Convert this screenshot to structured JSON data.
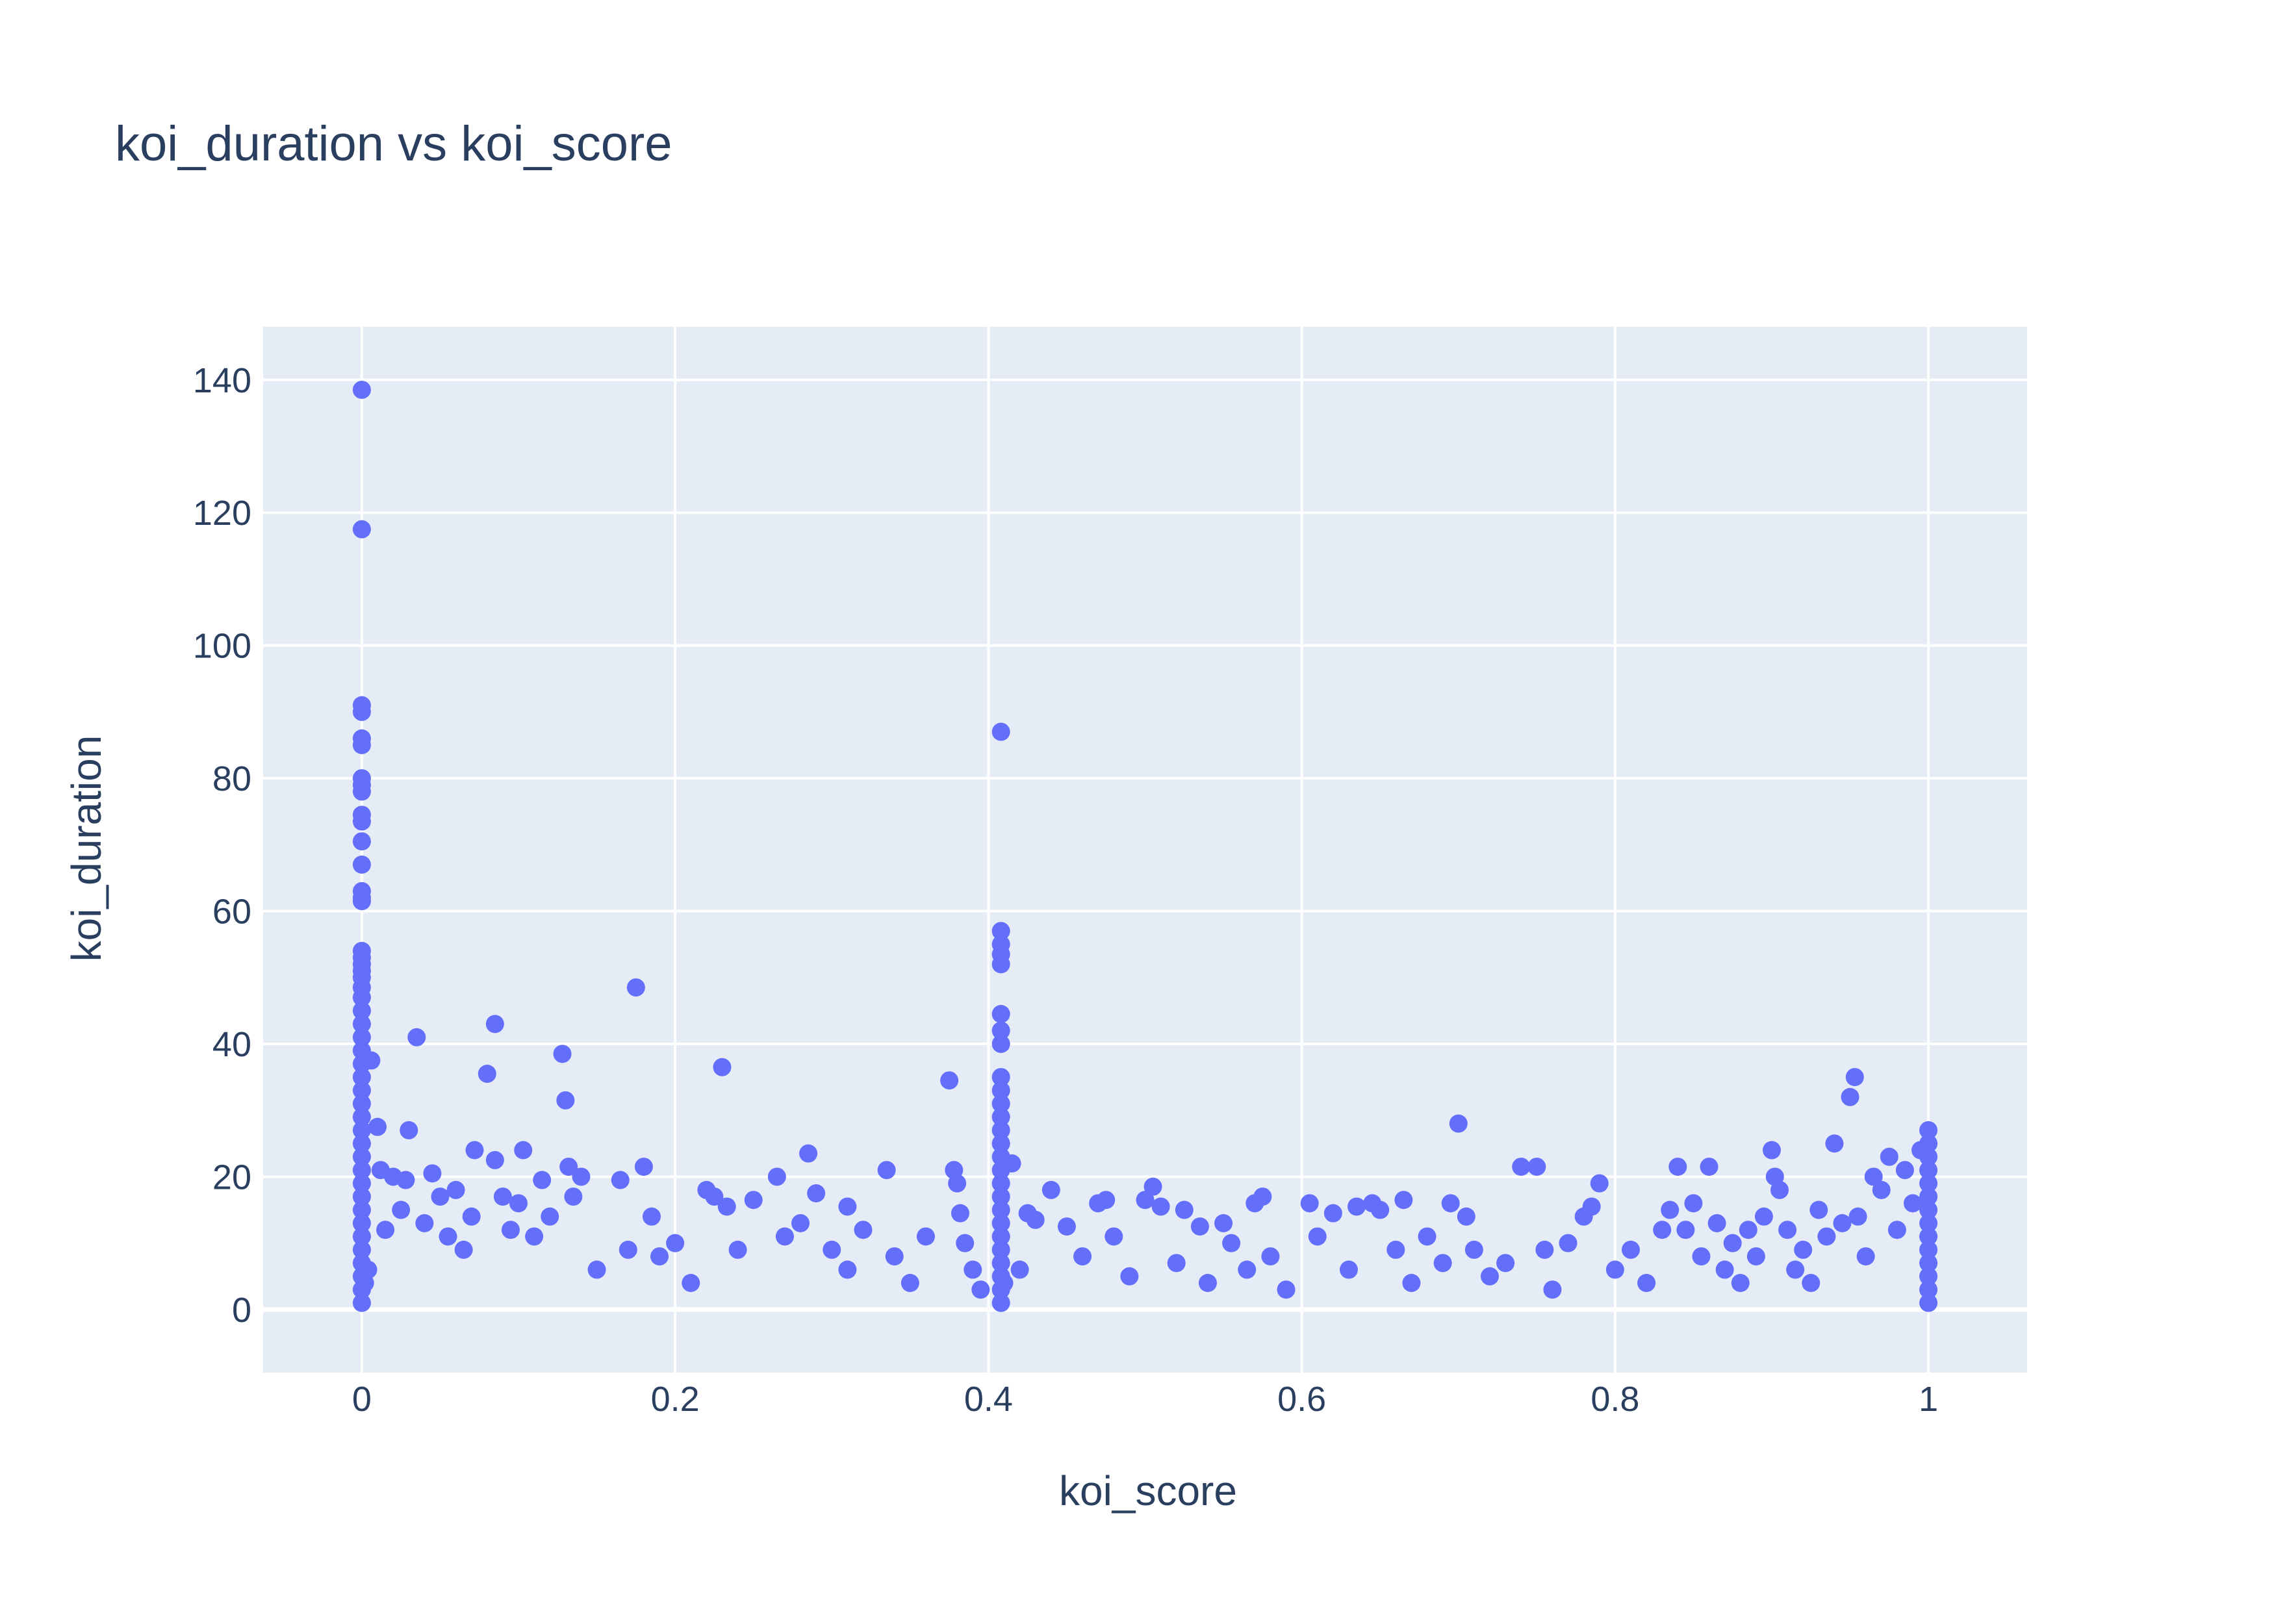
{
  "chart_data": {
    "type": "scatter",
    "title": "koi_duration vs koi_score",
    "xlabel": "koi_score",
    "ylabel": "koi_duration",
    "xlim": [
      -0.063,
      1.063
    ],
    "ylim": [
      -9.5,
      148
    ],
    "x_ticks": [
      0,
      0.2,
      0.4,
      0.6,
      0.8,
      1
    ],
    "x_tick_labels": [
      "0",
      "0.2",
      "0.4",
      "0.6",
      "0.8",
      "1"
    ],
    "y_ticks": [
      0,
      20,
      40,
      60,
      80,
      100,
      120,
      140
    ],
    "y_tick_labels": [
      "0",
      "20",
      "40",
      "60",
      "80",
      "100",
      "120",
      "140"
    ],
    "grid": true,
    "legend": "none",
    "colors": {
      "marker": "#636efa",
      "plot_bg": "#e5ecf6",
      "grid": "#ffffff",
      "text": "#2a3f5f"
    },
    "series": [
      {
        "points": [
          [
            0,
            138.5
          ],
          [
            0,
            117.5
          ],
          [
            0,
            91
          ],
          [
            0,
            90
          ],
          [
            0,
            86
          ],
          [
            0,
            85
          ],
          [
            0,
            80
          ],
          [
            0,
            79
          ],
          [
            0,
            78
          ],
          [
            0,
            74.5
          ],
          [
            0,
            73.5
          ],
          [
            0,
            70.5
          ],
          [
            0,
            67
          ],
          [
            0,
            63
          ],
          [
            0,
            62
          ],
          [
            0,
            61.5
          ],
          [
            0,
            54
          ],
          [
            0,
            53
          ],
          [
            0,
            52
          ],
          [
            0,
            51
          ],
          [
            0,
            50
          ],
          [
            0,
            48.5
          ],
          [
            0,
            47
          ],
          [
            0,
            45
          ],
          [
            0,
            43
          ],
          [
            0,
            41
          ],
          [
            0,
            39
          ],
          [
            0,
            37
          ],
          [
            0,
            35
          ],
          [
            0,
            33
          ],
          [
            0,
            31
          ],
          [
            0,
            29
          ],
          [
            0,
            27
          ],
          [
            0,
            25
          ],
          [
            0,
            23
          ],
          [
            0,
            21
          ],
          [
            0,
            19
          ],
          [
            0,
            17
          ],
          [
            0,
            15
          ],
          [
            0,
            13
          ],
          [
            0,
            11
          ],
          [
            0,
            9
          ],
          [
            0,
            7
          ],
          [
            0,
            5
          ],
          [
            0,
            3
          ],
          [
            0,
            1
          ],
          [
            0.002,
            4
          ],
          [
            0.004,
            6
          ],
          [
            0.006,
            37.5
          ],
          [
            0.01,
            27.5
          ],
          [
            0.012,
            21
          ],
          [
            0.015,
            12
          ],
          [
            0.02,
            20
          ],
          [
            0.025,
            15
          ],
          [
            0.028,
            19.5
          ],
          [
            0.03,
            27
          ],
          [
            0.035,
            41
          ],
          [
            0.04,
            13
          ],
          [
            0.045,
            20.5
          ],
          [
            0.05,
            17
          ],
          [
            0.055,
            11
          ],
          [
            0.06,
            18
          ],
          [
            0.065,
            9
          ],
          [
            0.07,
            14
          ],
          [
            0.072,
            24
          ],
          [
            0.08,
            35.5
          ],
          [
            0.085,
            43
          ],
          [
            0.085,
            22.5
          ],
          [
            0.09,
            17
          ],
          [
            0.095,
            12
          ],
          [
            0.1,
            16
          ],
          [
            0.103,
            24
          ],
          [
            0.11,
            11
          ],
          [
            0.115,
            19.5
          ],
          [
            0.12,
            14
          ],
          [
            0.128,
            38.5
          ],
          [
            0.13,
            31.5
          ],
          [
            0.132,
            21.5
          ],
          [
            0.135,
            17
          ],
          [
            0.14,
            20
          ],
          [
            0.15,
            6
          ],
          [
            0.165,
            19.5
          ],
          [
            0.17,
            9
          ],
          [
            0.175,
            48.5
          ],
          [
            0.18,
            21.5
          ],
          [
            0.185,
            14
          ],
          [
            0.19,
            8
          ],
          [
            0.2,
            10
          ],
          [
            0.21,
            4
          ],
          [
            0.22,
            18
          ],
          [
            0.225,
            17
          ],
          [
            0.23,
            36.5
          ],
          [
            0.233,
            15.5
          ],
          [
            0.24,
            9
          ],
          [
            0.25,
            16.5
          ],
          [
            0.265,
            20
          ],
          [
            0.27,
            11
          ],
          [
            0.28,
            13
          ],
          [
            0.285,
            23.5
          ],
          [
            0.29,
            17.5
          ],
          [
            0.3,
            9
          ],
          [
            0.31,
            6
          ],
          [
            0.31,
            15.5
          ],
          [
            0.32,
            12
          ],
          [
            0.335,
            21
          ],
          [
            0.34,
            8
          ],
          [
            0.35,
            4
          ],
          [
            0.36,
            11
          ],
          [
            0.375,
            34.5
          ],
          [
            0.378,
            21
          ],
          [
            0.38,
            19
          ],
          [
            0.382,
            14.5
          ],
          [
            0.385,
            10
          ],
          [
            0.39,
            6
          ],
          [
            0.395,
            3
          ],
          [
            0.408,
            87
          ],
          [
            0.408,
            57
          ],
          [
            0.408,
            55
          ],
          [
            0.408,
            53.5
          ],
          [
            0.408,
            52
          ],
          [
            0.408,
            44.5
          ],
          [
            0.408,
            42
          ],
          [
            0.408,
            40
          ],
          [
            0.408,
            35
          ],
          [
            0.408,
            33
          ],
          [
            0.408,
            31
          ],
          [
            0.408,
            29
          ],
          [
            0.408,
            27
          ],
          [
            0.408,
            25
          ],
          [
            0.408,
            23
          ],
          [
            0.408,
            21
          ],
          [
            0.408,
            19
          ],
          [
            0.408,
            17
          ],
          [
            0.408,
            15
          ],
          [
            0.408,
            13
          ],
          [
            0.408,
            11
          ],
          [
            0.408,
            9
          ],
          [
            0.408,
            7
          ],
          [
            0.408,
            5
          ],
          [
            0.408,
            3
          ],
          [
            0.408,
            1
          ],
          [
            0.41,
            4
          ],
          [
            0.415,
            22
          ],
          [
            0.42,
            6
          ],
          [
            0.425,
            14.5
          ],
          [
            0.43,
            13.5
          ],
          [
            0.44,
            18
          ],
          [
            0.45,
            12.5
          ],
          [
            0.46,
            8
          ],
          [
            0.47,
            16
          ],
          [
            0.475,
            16.5
          ],
          [
            0.48,
            11
          ],
          [
            0.49,
            5
          ],
          [
            0.5,
            16.5
          ],
          [
            0.505,
            18.5
          ],
          [
            0.51,
            15.5
          ],
          [
            0.52,
            7
          ],
          [
            0.525,
            15
          ],
          [
            0.535,
            12.5
          ],
          [
            0.54,
            4
          ],
          [
            0.55,
            13
          ],
          [
            0.555,
            10
          ],
          [
            0.565,
            6
          ],
          [
            0.57,
            16
          ],
          [
            0.575,
            17
          ],
          [
            0.58,
            8
          ],
          [
            0.59,
            3
          ],
          [
            0.605,
            16
          ],
          [
            0.61,
            11
          ],
          [
            0.62,
            14.5
          ],
          [
            0.63,
            6
          ],
          [
            0.635,
            15.5
          ],
          [
            0.645,
            16
          ],
          [
            0.65,
            15
          ],
          [
            0.66,
            9
          ],
          [
            0.665,
            16.5
          ],
          [
            0.67,
            4
          ],
          [
            0.68,
            11
          ],
          [
            0.69,
            7
          ],
          [
            0.695,
            16
          ],
          [
            0.7,
            28
          ],
          [
            0.705,
            14
          ],
          [
            0.71,
            9
          ],
          [
            0.72,
            5
          ],
          [
            0.73,
            7
          ],
          [
            0.74,
            21.5
          ],
          [
            0.75,
            21.5
          ],
          [
            0.755,
            9
          ],
          [
            0.76,
            3
          ],
          [
            0.77,
            10
          ],
          [
            0.78,
            14
          ],
          [
            0.785,
            15.5
          ],
          [
            0.79,
            19
          ],
          [
            0.8,
            6
          ],
          [
            0.81,
            9
          ],
          [
            0.82,
            4
          ],
          [
            0.83,
            12
          ],
          [
            0.835,
            15
          ],
          [
            0.84,
            21.5
          ],
          [
            0.845,
            12
          ],
          [
            0.85,
            16
          ],
          [
            0.855,
            8
          ],
          [
            0.86,
            21.5
          ],
          [
            0.865,
            13
          ],
          [
            0.87,
            6
          ],
          [
            0.875,
            10
          ],
          [
            0.88,
            4
          ],
          [
            0.885,
            12
          ],
          [
            0.89,
            8
          ],
          [
            0.895,
            14
          ],
          [
            0.9,
            24
          ],
          [
            0.902,
            20
          ],
          [
            0.905,
            18
          ],
          [
            0.91,
            12
          ],
          [
            0.915,
            6
          ],
          [
            0.92,
            9
          ],
          [
            0.925,
            4
          ],
          [
            0.93,
            15
          ],
          [
            0.935,
            11
          ],
          [
            0.94,
            25
          ],
          [
            0.945,
            13
          ],
          [
            0.95,
            32
          ],
          [
            0.953,
            35
          ],
          [
            0.955,
            14
          ],
          [
            0.96,
            8
          ],
          [
            0.965,
            20
          ],
          [
            0.97,
            18
          ],
          [
            0.975,
            23
          ],
          [
            0.98,
            12
          ],
          [
            0.985,
            21
          ],
          [
            0.99,
            16
          ],
          [
            0.995,
            24
          ],
          [
            1,
            27
          ],
          [
            1,
            25
          ],
          [
            1,
            23
          ],
          [
            1,
            21
          ],
          [
            1,
            19
          ],
          [
            1,
            17
          ],
          [
            1,
            15
          ],
          [
            1,
            13
          ],
          [
            1,
            11
          ],
          [
            1,
            9
          ],
          [
            1,
            7
          ],
          [
            1,
            5
          ],
          [
            1,
            3
          ],
          [
            1,
            1
          ]
        ]
      }
    ]
  }
}
